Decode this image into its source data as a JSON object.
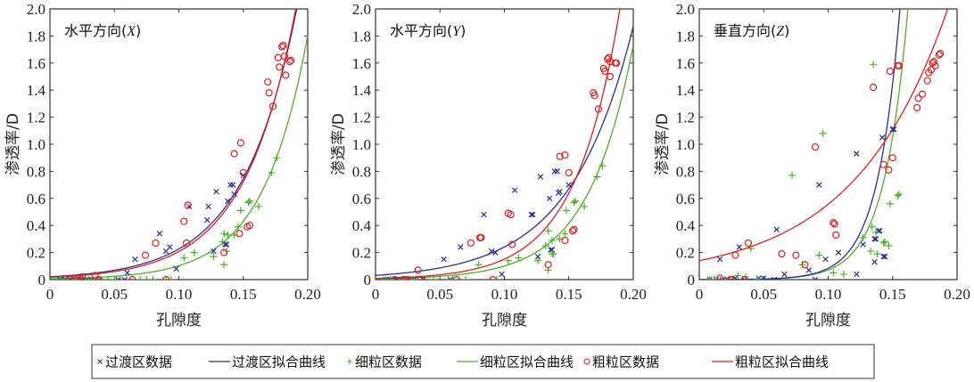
{
  "chart_data": {
    "type": "scatter",
    "xlabel": "孔隙度",
    "ylabel": "渗透率/D",
    "xlim": [
      0,
      0.2
    ],
    "ylim": [
      0,
      2.0
    ],
    "xticks": [
      0,
      0.05,
      0.1,
      0.15,
      0.2
    ],
    "xtick_labels": [
      "0",
      "0.05",
      "0.10",
      "0.15",
      "0.20"
    ],
    "yticks": [
      0,
      0.2,
      0.4,
      0.6,
      0.8,
      1.0,
      1.2,
      1.4,
      1.6,
      1.8,
      2.0
    ],
    "ytick_labels": [
      "0",
      "0.2",
      "0.4",
      "0.6",
      "0.8",
      "1.0",
      "1.2",
      "1.4",
      "1.6",
      "1.8",
      "2.0"
    ],
    "grid": false,
    "legend_placement": "bottom",
    "legend": [
      {
        "label": "过渡区数据",
        "kind": "marker",
        "marker": "x",
        "color": "#2b2f8f"
      },
      {
        "label": "过渡区拟合曲线",
        "kind": "line",
        "color": "#2b2f8f"
      },
      {
        "label": "细粒区数据",
        "kind": "marker",
        "marker": "+",
        "color": "#4caf2a"
      },
      {
        "label": "细粒区拟合曲线",
        "kind": "line",
        "color": "#4caf2a"
      },
      {
        "label": "粗粒区数据",
        "kind": "marker",
        "marker": "o",
        "color": "#e02020"
      },
      {
        "label": "粗粒区拟合曲线",
        "kind": "line",
        "color": "#e02020"
      }
    ],
    "panels": [
      {
        "title_main": "水平方向(",
        "title_var": "X",
        "title_end": ")",
        "fits": {
          "transition": {
            "a": 0.021,
            "b": 23.8
          },
          "fine": {
            "a": 0.0058,
            "b": 28.7
          },
          "coarse": {
            "a": 0.017,
            "b": 25.0
          }
        },
        "transition_data": [
          [
            0.008,
            0
          ],
          [
            0.012,
            0
          ],
          [
            0.016,
            0
          ],
          [
            0.02,
            0
          ],
          [
            0.025,
            0
          ],
          [
            0.028,
            0
          ],
          [
            0.032,
            0
          ],
          [
            0.038,
            0
          ],
          [
            0.053,
            0
          ],
          [
            0.058,
            0
          ],
          [
            0.06,
            0.05
          ],
          [
            0.066,
            0.15
          ],
          [
            0.085,
            0.34
          ],
          [
            0.09,
            0.21
          ],
          [
            0.093,
            0.24
          ],
          [
            0.098,
            0.08
          ],
          [
            0.108,
            0.54
          ],
          [
            0.122,
            0.44
          ],
          [
            0.123,
            0.54
          ],
          [
            0.127,
            0.21
          ],
          [
            0.129,
            0.65
          ],
          [
            0.136,
            0.26
          ],
          [
            0.137,
            0.26
          ],
          [
            0.138,
            0.58
          ],
          [
            0.14,
            0.7
          ],
          [
            0.142,
            0.7
          ],
          [
            0.143,
            0.63
          ],
          [
            0.15,
            0.77
          ]
        ],
        "fine_data": [
          [
            0.008,
            0
          ],
          [
            0.012,
            0
          ],
          [
            0.02,
            0
          ],
          [
            0.03,
            0
          ],
          [
            0.036,
            0
          ],
          [
            0.045,
            0
          ],
          [
            0.05,
            0
          ],
          [
            0.07,
            0
          ],
          [
            0.075,
            0
          ],
          [
            0.08,
            0
          ],
          [
            0.09,
            0
          ],
          [
            0.094,
            0
          ],
          [
            0.104,
            0.16
          ],
          [
            0.112,
            0.2
          ],
          [
            0.127,
            0.17
          ],
          [
            0.134,
            0.28
          ],
          [
            0.135,
            0.34
          ],
          [
            0.135,
            0.11
          ],
          [
            0.137,
            0.21
          ],
          [
            0.138,
            0.33
          ],
          [
            0.143,
            0.33
          ],
          [
            0.146,
            0.39
          ],
          [
            0.148,
            0.51
          ],
          [
            0.154,
            0.57
          ],
          [
            0.155,
            0.58
          ],
          [
            0.162,
            0.54
          ],
          [
            0.172,
            0.79
          ],
          [
            0.176,
            0.9
          ]
        ],
        "coarse_data": [
          [
            0.015,
            0
          ],
          [
            0.02,
            0
          ],
          [
            0.024,
            0
          ],
          [
            0.025,
            0.02
          ],
          [
            0.035,
            0.03
          ],
          [
            0.038,
            0
          ],
          [
            0.064,
            0
          ],
          [
            0.074,
            0.18
          ],
          [
            0.082,
            0.27
          ],
          [
            0.09,
            0
          ],
          [
            0.104,
            0.43
          ],
          [
            0.106,
            0.27
          ],
          [
            0.107,
            0.55
          ],
          [
            0.135,
            0.2
          ],
          [
            0.143,
            0.93
          ],
          [
            0.147,
            0.34
          ],
          [
            0.148,
            1.01
          ],
          [
            0.15,
            0.79
          ],
          [
            0.153,
            0.39
          ],
          [
            0.155,
            0.4
          ],
          [
            0.169,
            1.46
          ],
          [
            0.17,
            1.38
          ],
          [
            0.173,
            1.28
          ],
          [
            0.177,
            1.64
          ],
          [
            0.178,
            1.57
          ],
          [
            0.18,
            1.72
          ],
          [
            0.181,
            1.73
          ],
          [
            0.182,
            1.65
          ],
          [
            0.183,
            1.51
          ],
          [
            0.186,
            1.61
          ],
          [
            0.187,
            1.62
          ]
        ]
      },
      {
        "title_main": "水平方向(",
        "title_var": "Y",
        "title_end": ")",
        "fits": {
          "transition": {
            "a": 0.031,
            "b": 20.5
          },
          "fine": {
            "a": 0.0058,
            "b": 28.5
          },
          "coarse": {
            "a": 0.0085,
            "b": 28.8
          }
        },
        "transition_data": [
          [
            0.008,
            0
          ],
          [
            0.012,
            0
          ],
          [
            0.016,
            0
          ],
          [
            0.02,
            0
          ],
          [
            0.025,
            0
          ],
          [
            0.03,
            0
          ],
          [
            0.037,
            0
          ],
          [
            0.058,
            0
          ],
          [
            0.053,
            0.15
          ],
          [
            0.066,
            0.24
          ],
          [
            0.084,
            0.48
          ],
          [
            0.09,
            0.21
          ],
          [
            0.093,
            0.2
          ],
          [
            0.098,
            0.04
          ],
          [
            0.108,
            0.66
          ],
          [
            0.121,
            0.48
          ],
          [
            0.122,
            0.48
          ],
          [
            0.126,
            0.17
          ],
          [
            0.128,
            0.76
          ],
          [
            0.135,
            0.6
          ],
          [
            0.136,
            0.22
          ],
          [
            0.137,
            0.22
          ],
          [
            0.139,
            0.8
          ],
          [
            0.141,
            0.8
          ],
          [
            0.142,
            0.64
          ],
          [
            0.143,
            0.65
          ],
          [
            0.15,
            0.7
          ]
        ],
        "fine_data": [
          [
            0.008,
            0
          ],
          [
            0.012,
            0
          ],
          [
            0.02,
            0
          ],
          [
            0.03,
            0
          ],
          [
            0.045,
            0
          ],
          [
            0.06,
            0
          ],
          [
            0.07,
            0
          ],
          [
            0.094,
            0
          ],
          [
            0.08,
            0.11
          ],
          [
            0.103,
            0.14
          ],
          [
            0.111,
            0.16
          ],
          [
            0.126,
            0.14
          ],
          [
            0.132,
            0.25
          ],
          [
            0.134,
            0.36
          ],
          [
            0.134,
            0.07
          ],
          [
            0.137,
            0.29
          ],
          [
            0.137,
            0.19
          ],
          [
            0.138,
            0.19
          ],
          [
            0.143,
            0.3
          ],
          [
            0.147,
            0.34
          ],
          [
            0.148,
            0.51
          ],
          [
            0.154,
            0.57
          ],
          [
            0.155,
            0.58
          ],
          [
            0.162,
            0.54
          ],
          [
            0.172,
            0.76
          ],
          [
            0.176,
            0.84
          ]
        ],
        "coarse_data": [
          [
            0.015,
            0
          ],
          [
            0.022,
            0
          ],
          [
            0.025,
            0
          ],
          [
            0.035,
            0
          ],
          [
            0.033,
            0.07
          ],
          [
            0.063,
            0
          ],
          [
            0.074,
            0.27
          ],
          [
            0.081,
            0.31
          ],
          [
            0.082,
            0.31
          ],
          [
            0.091,
            0
          ],
          [
            0.103,
            0.49
          ],
          [
            0.105,
            0.48
          ],
          [
            0.106,
            0.26
          ],
          [
            0.134,
            0.11
          ],
          [
            0.143,
            0.91
          ],
          [
            0.147,
            0.92
          ],
          [
            0.147,
            0.29
          ],
          [
            0.15,
            0.79
          ],
          [
            0.153,
            0.36
          ],
          [
            0.154,
            0.37
          ],
          [
            0.169,
            1.38
          ],
          [
            0.17,
            1.36
          ],
          [
            0.173,
            1.26
          ],
          [
            0.177,
            1.56
          ],
          [
            0.178,
            1.54
          ],
          [
            0.18,
            1.63
          ],
          [
            0.181,
            1.64
          ],
          [
            0.182,
            1.61
          ],
          [
            0.182,
            1.5
          ],
          [
            0.186,
            1.6
          ],
          [
            0.187,
            1.6
          ]
        ]
      },
      {
        "title_main": "垂直方向(",
        "title_var": "Z",
        "title_end": ")",
        "fits": {
          "transition": {
            "a": 0.00028,
            "b": 57.0
          },
          "fine": {
            "a": 0.00032,
            "b": 54.0
          },
          "coarse": {
            "a": 0.14,
            "b": 13.8
          }
        },
        "transition_data": [
          [
            0.008,
            0
          ],
          [
            0.013,
            0
          ],
          [
            0.018,
            0
          ],
          [
            0.022,
            0
          ],
          [
            0.028,
            0.01
          ],
          [
            0.035,
            0
          ],
          [
            0.046,
            0.01
          ],
          [
            0.05,
            0.01
          ],
          [
            0.058,
            0
          ],
          [
            0.016,
            0.15
          ],
          [
            0.031,
            0.24
          ],
          [
            0.06,
            0.37
          ],
          [
            0.066,
            0.04
          ],
          [
            0.085,
            0.07
          ],
          [
            0.09,
            0
          ],
          [
            0.093,
            0.7
          ],
          [
            0.098,
            0.15
          ],
          [
            0.108,
            0.2
          ],
          [
            0.122,
            0.93
          ],
          [
            0.122,
            0.04
          ],
          [
            0.127,
            0.26
          ],
          [
            0.136,
            0.3
          ],
          [
            0.137,
            0.3
          ],
          [
            0.139,
            0.36
          ],
          [
            0.14,
            0.36
          ],
          [
            0.136,
            0.13
          ],
          [
            0.142,
            1.05
          ],
          [
            0.143,
            0.17
          ],
          [
            0.144,
            0.17
          ],
          [
            0.15,
            1.11
          ],
          [
            0.151,
            1.11
          ]
        ],
        "fine_data": [
          [
            0.008,
            0
          ],
          [
            0.012,
            0
          ],
          [
            0.02,
            0
          ],
          [
            0.03,
            0.03
          ],
          [
            0.036,
            0.02
          ],
          [
            0.04,
            0.23
          ],
          [
            0.045,
            0
          ],
          [
            0.072,
            0.77
          ],
          [
            0.08,
            0.11
          ],
          [
            0.093,
            0.18
          ],
          [
            0.096,
            1.08
          ],
          [
            0.104,
            0.05
          ],
          [
            0.112,
            0.04
          ],
          [
            0.127,
            0.31
          ],
          [
            0.133,
            0.21
          ],
          [
            0.134,
            0.39
          ],
          [
            0.135,
            1.59
          ],
          [
            0.137,
            0.35
          ],
          [
            0.138,
            0.19
          ],
          [
            0.143,
            0.27
          ],
          [
            0.144,
            0.28
          ],
          [
            0.147,
            0.25
          ],
          [
            0.148,
            0.56
          ],
          [
            0.154,
            0.62
          ],
          [
            0.155,
            0.63
          ]
        ],
        "coarse_data": [
          [
            0.016,
            0.01
          ],
          [
            0.024,
            0
          ],
          [
            0.025,
            0
          ],
          [
            0.028,
            0.18
          ],
          [
            0.038,
            0.27
          ],
          [
            0.035,
            0
          ],
          [
            0.064,
            0.19
          ],
          [
            0.075,
            0.18
          ],
          [
            0.082,
            0.11
          ],
          [
            0.09,
            0.98
          ],
          [
            0.104,
            0.42
          ],
          [
            0.105,
            0.41
          ],
          [
            0.106,
            0.33
          ],
          [
            0.135,
            1.42
          ],
          [
            0.143,
            0.85
          ],
          [
            0.147,
            0.81
          ],
          [
            0.148,
            1.54
          ],
          [
            0.15,
            0.9
          ],
          [
            0.154,
            1.58
          ],
          [
            0.155,
            1.58
          ],
          [
            0.169,
            1.27
          ],
          [
            0.17,
            1.34
          ],
          [
            0.173,
            1.37
          ],
          [
            0.177,
            1.47
          ],
          [
            0.178,
            1.53
          ],
          [
            0.18,
            1.55
          ],
          [
            0.181,
            1.6
          ],
          [
            0.182,
            1.61
          ],
          [
            0.183,
            1.58
          ],
          [
            0.186,
            1.66
          ],
          [
            0.187,
            1.67
          ]
        ]
      }
    ]
  }
}
